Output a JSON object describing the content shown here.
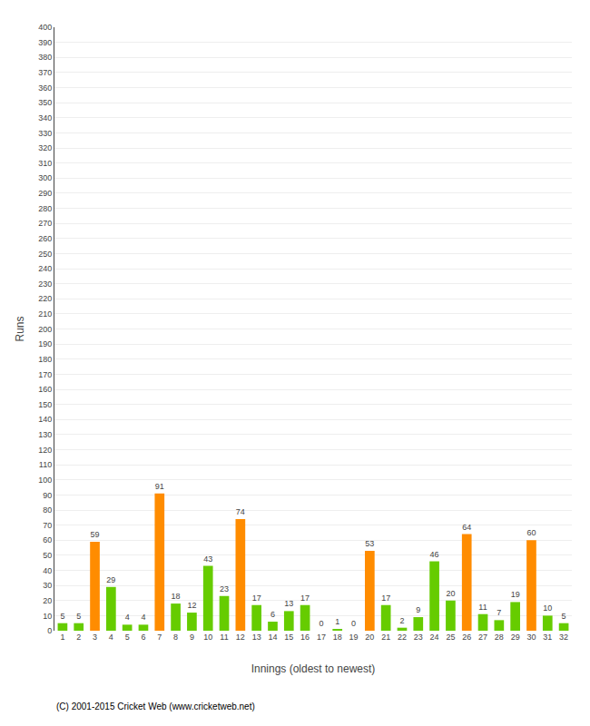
{
  "chart_data": {
    "type": "bar",
    "xlabel": "Innings (oldest to newest)",
    "ylabel": "Runs",
    "annotations": [
      "(C) 2001-2015 Cricket Web (www.cricketweb.net)"
    ],
    "categories": [
      "1",
      "2",
      "3",
      "4",
      "5",
      "6",
      "7",
      "8",
      "9",
      "10",
      "11",
      "12",
      "13",
      "14",
      "15",
      "16",
      "17",
      "18",
      "19",
      "20",
      "21",
      "22",
      "23",
      "24",
      "25",
      "26",
      "27",
      "28",
      "29",
      "30",
      "31",
      "32"
    ],
    "values": [
      5,
      5,
      59,
      29,
      4,
      4,
      91,
      18,
      12,
      43,
      23,
      74,
      17,
      6,
      13,
      17,
      0,
      1,
      0,
      53,
      17,
      2,
      9,
      46,
      20,
      64,
      11,
      7,
      19,
      60,
      10,
      5
    ],
    "colors": [
      "#66cc00",
      "#66cc00",
      "#ff8c00",
      "#66cc00",
      "#66cc00",
      "#66cc00",
      "#ff8c00",
      "#66cc00",
      "#66cc00",
      "#66cc00",
      "#66cc00",
      "#ff8c00",
      "#66cc00",
      "#66cc00",
      "#66cc00",
      "#66cc00",
      "#66cc00",
      "#66cc00",
      "#66cc00",
      "#ff8c00",
      "#66cc00",
      "#66cc00",
      "#66cc00",
      "#66cc00",
      "#66cc00",
      "#ff8c00",
      "#66cc00",
      "#66cc00",
      "#66cc00",
      "#ff8c00",
      "#66cc00",
      "#66cc00"
    ],
    "ylim": [
      0,
      400
    ],
    "yticks": [
      0,
      10,
      20,
      30,
      40,
      50,
      60,
      70,
      80,
      90,
      100,
      110,
      120,
      130,
      140,
      150,
      160,
      170,
      180,
      190,
      200,
      210,
      220,
      230,
      240,
      250,
      260,
      270,
      280,
      290,
      300,
      310,
      320,
      330,
      340,
      350,
      360,
      370,
      380,
      390,
      400
    ],
    "grid": true,
    "data_labels": true
  }
}
